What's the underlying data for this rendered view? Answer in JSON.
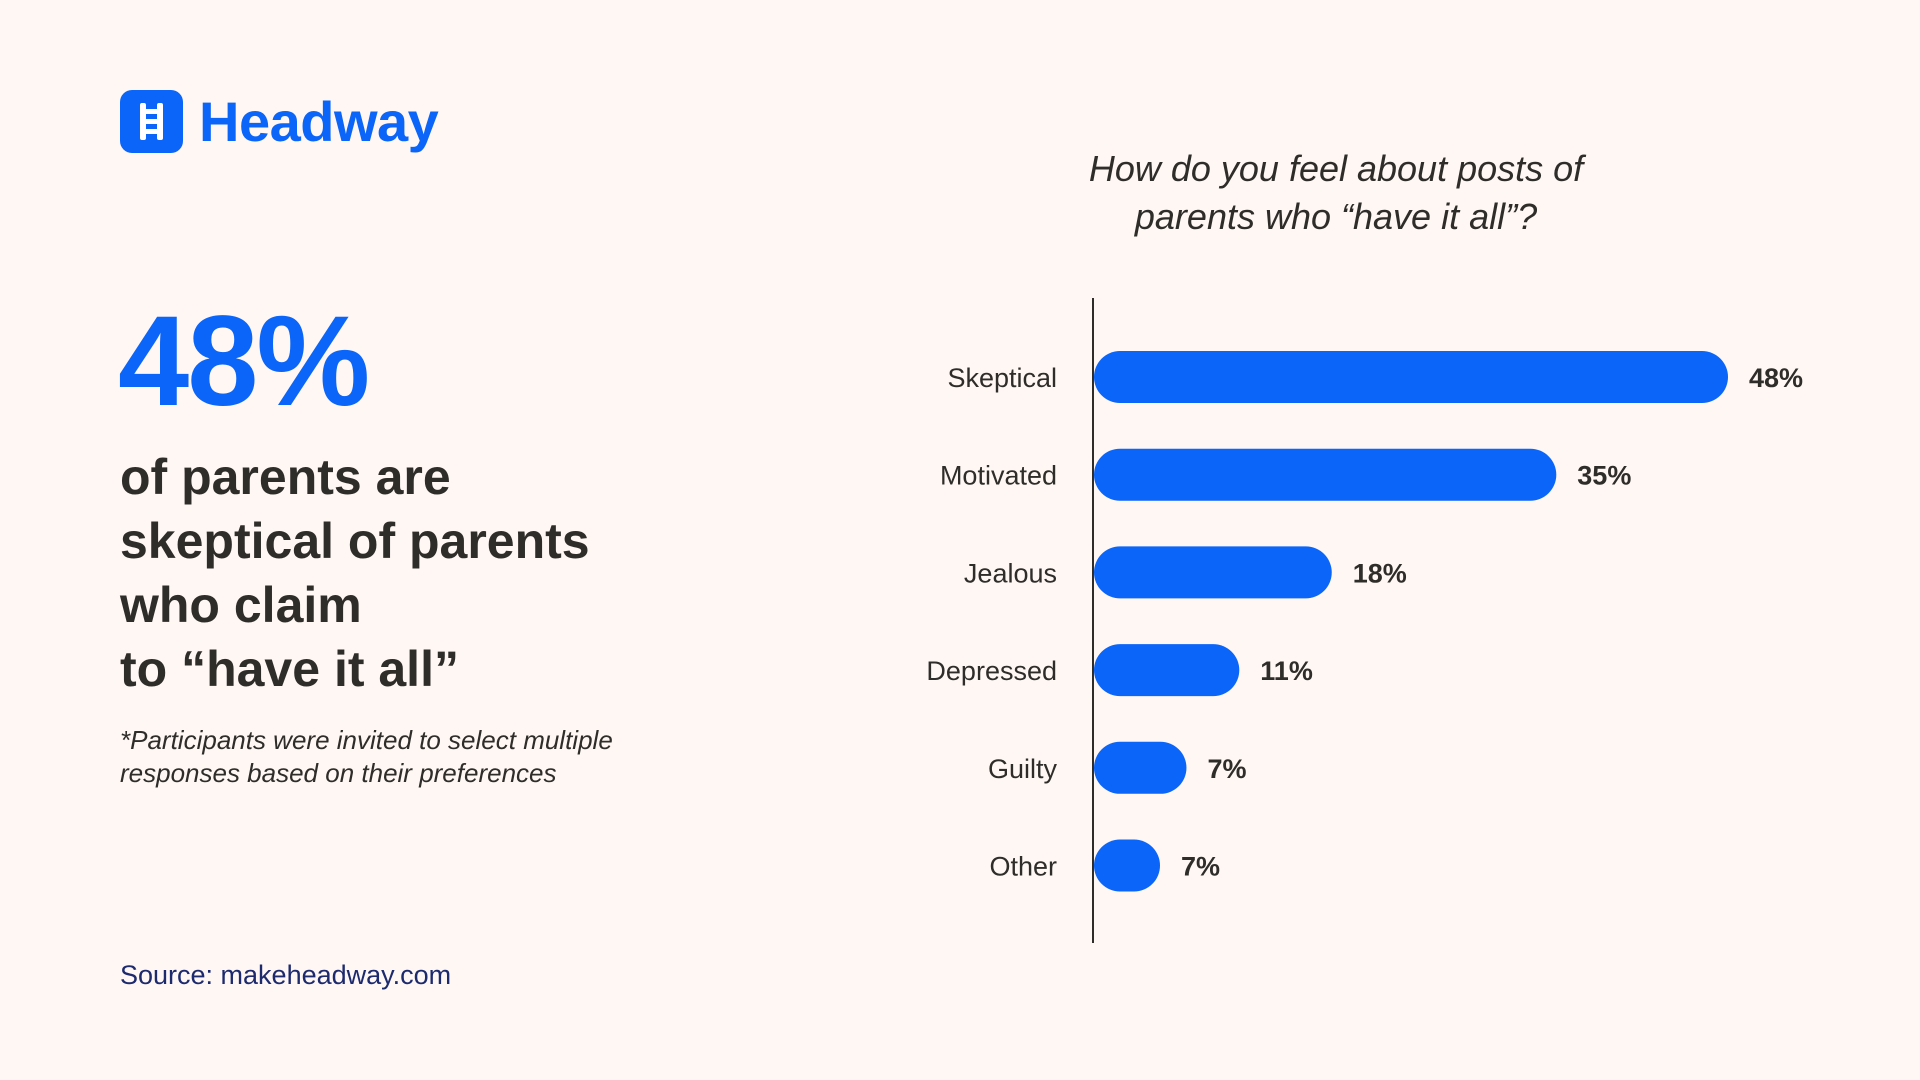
{
  "brand": {
    "name": "Headway",
    "logo_icon": "ladder-icon",
    "accent_color": "#0B65F8"
  },
  "headline": {
    "stat": "48%",
    "lines": [
      "of parents are",
      "skeptical of parents",
      "who claim",
      "to “have it all”"
    ]
  },
  "footnote": {
    "lines": [
      "*Participants were invited to select multiple",
      "responses based on their preferences"
    ]
  },
  "source": "Source: makeheadway.com",
  "chart_data": {
    "type": "bar",
    "orientation": "horizontal",
    "title_lines": [
      "How do you feel about posts of",
      "parents who “have it all”?"
    ],
    "categories": [
      "Skeptical",
      "Motivated",
      "Jealous",
      "Depressed",
      "Guilty",
      "Other"
    ],
    "values": [
      48,
      35,
      18,
      11,
      7,
      7
    ],
    "value_labels": [
      "48%",
      "35%",
      "18%",
      "11%",
      "7%",
      "7%"
    ],
    "xlim": [
      0,
      48
    ],
    "grid": false,
    "bar_color": "#0B65F8"
  }
}
